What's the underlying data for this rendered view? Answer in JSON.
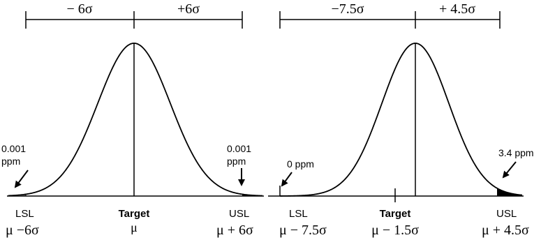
{
  "left_panel": {
    "range_left": "− 6σ",
    "range_right": "+6σ",
    "tail_left_value": "0.001",
    "tail_left_unit": "ppm",
    "tail_right_value": "0.001",
    "tail_right_unit": "ppm",
    "lsl_label": "LSL",
    "lsl_formula": "μ −6σ",
    "target_label": "Target",
    "target_formula": "μ",
    "usl_label": "USL",
    "usl_formula": "μ + 6σ"
  },
  "right_panel": {
    "range_left": "−7.5σ",
    "range_right": "+ 4.5σ",
    "tail_left": "0 ppm",
    "tail_right": "3.4 ppm",
    "lsl_label": "LSL",
    "lsl_formula": "μ − 7.5σ",
    "target_label": "Target",
    "target_formula": "μ − 1.5σ",
    "usl_label": "USL",
    "usl_formula": "μ + 4.5σ"
  },
  "colors": {
    "ink": "#000000",
    "tail_fill": "#000000",
    "left_tail_fill": "#555555"
  }
}
